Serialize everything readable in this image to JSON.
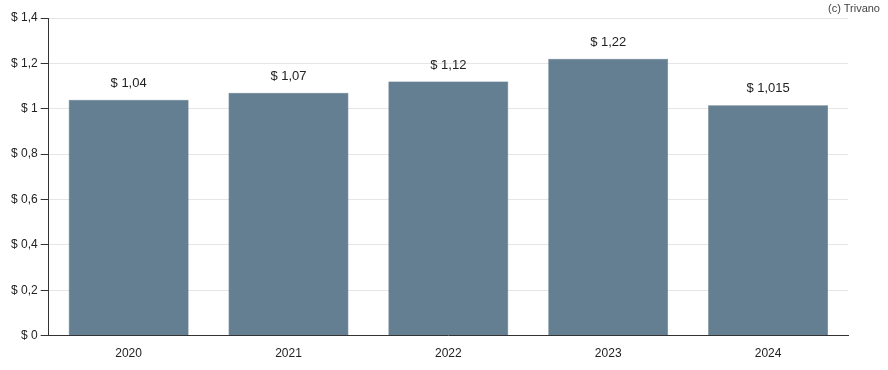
{
  "chart_data": {
    "type": "bar",
    "annotations": [
      "(c) Trivano"
    ],
    "categories": [
      "2020",
      "2021",
      "2022",
      "2023",
      "2024"
    ],
    "values": [
      1.04,
      1.07,
      1.12,
      1.22,
      1.015
    ],
    "value_labels": [
      "$ 1,04",
      "$ 1,07",
      "$ 1,12",
      "$ 1,22",
      "$ 1,015"
    ],
    "color": "#647f92",
    "ylim": [
      0,
      1.4
    ],
    "yticks": [
      {
        "value": 0,
        "label": "$ 0"
      },
      {
        "value": 0.2,
        "label": "$ 0,2"
      },
      {
        "value": 0.4,
        "label": "$ 0,4"
      },
      {
        "value": 0.6,
        "label": "$ 0,6"
      },
      {
        "value": 0.8,
        "label": "$ 0,8"
      },
      {
        "value": 1,
        "label": "$ 1"
      },
      {
        "value": 1.2,
        "label": "$ 1,2"
      },
      {
        "value": 1.4,
        "label": "$ 1,4"
      }
    ],
    "grid": true,
    "data_labels": true
  }
}
